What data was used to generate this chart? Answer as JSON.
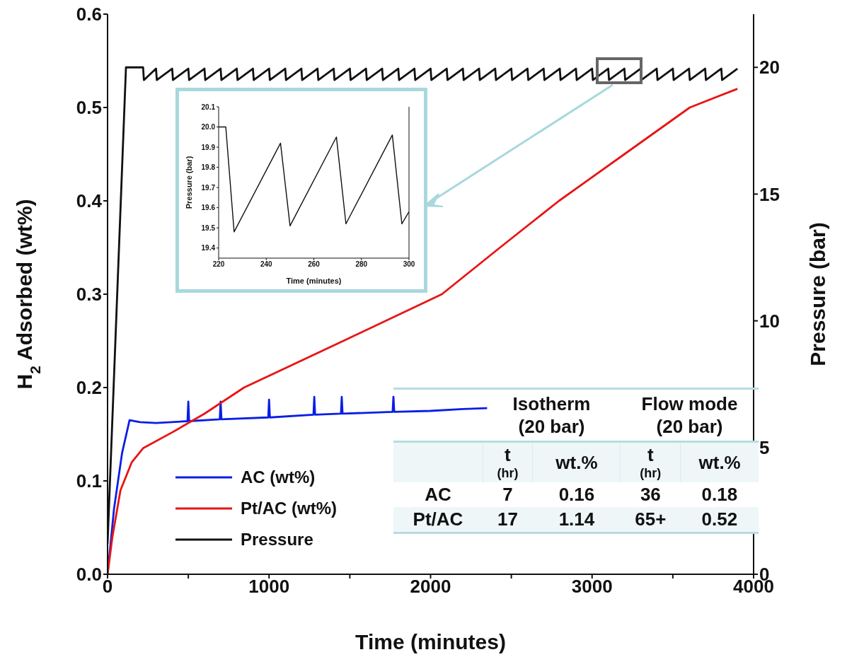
{
  "chart_data": [
    {
      "type": "line",
      "xlabel": "Time (minutes)",
      "ylabel": "H$_{2}$ Adsorbed (wt%)",
      "y2label": "Pressure (bar)",
      "xlim": [
        0,
        4000
      ],
      "xticks": [
        0,
        {
          "value": 500,
          "label": null
        },
        1000,
        {
          "value": 1500,
          "label": null
        },
        2000,
        {
          "value": 2500,
          "label": null
        },
        3000,
        {
          "value": 3500,
          "label": null
        },
        4000
      ],
      "ylim": [
        0,
        0.6
      ],
      "yticks": [
        {
          "value": 0,
          "label": "0.0"
        },
        0.1,
        0.2,
        0.3,
        0.4,
        0.5,
        0.6
      ],
      "y2lim": [
        0,
        22.1
      ],
      "y2ticks": [
        0,
        5,
        10,
        15,
        20
      ],
      "legend": "bottom left",
      "grid": false,
      "marker": "none",
      "line_style": "solid",
      "series": [
        {
          "name": "AC (wt%)",
          "color": "#0a1ee6",
          "x": [
            0,
            40,
            90,
            136,
            200,
            300,
            495,
            500,
            505,
            695,
            700,
            705,
            995,
            1000,
            1005,
            1275,
            1280,
            1285,
            1445,
            1450,
            1455,
            1765,
            1770,
            1775,
            2000,
            2200,
            2350
          ],
          "values": [
            0,
            0.07,
            0.13,
            0.165,
            0.163,
            0.162,
            0.164,
            0.185,
            0.164,
            0.166,
            0.185,
            0.166,
            0.168,
            0.187,
            0.168,
            0.171,
            0.19,
            0.171,
            0.172,
            0.19,
            0.172,
            0.174,
            0.19,
            0.174,
            0.175,
            0.177,
            0.178
          ]
        },
        {
          "name": "Pt/AC (wt%)",
          "color": "#e81414",
          "x": [
            0,
            30,
            80,
            150,
            220,
            400,
            600,
            845,
            1460,
            2070,
            2430,
            2795,
            3200,
            3605,
            3900
          ],
          "values": [
            0,
            0.04,
            0.09,
            0.12,
            0.135,
            0.152,
            0.172,
            0.2,
            0.25,
            0.3,
            0.35,
            0.4,
            0.45,
            0.5,
            0.52
          ]
        },
        {
          "name": "Pressure",
          "color": "#111111",
          "axis": "y2",
          "x": [
            0,
            114,
            220,
            225,
            300,
            305,
            400,
            405,
            500,
            505,
            600,
            605,
            700,
            705,
            800,
            805,
            900,
            905,
            1000,
            1005,
            1100,
            1105,
            1200,
            1205,
            1300,
            1305,
            1400,
            1405,
            1500,
            1505,
            1600,
            1605,
            1700,
            1705,
            1800,
            1805,
            1900,
            1905,
            2000,
            2005,
            2100,
            2105,
            2200,
            2205,
            2300,
            2305,
            2400,
            2405,
            2500,
            2505,
            2600,
            2605,
            2700,
            2705,
            2800,
            2805,
            2900,
            2905,
            3000,
            3005,
            3100,
            3105,
            3200,
            3205,
            3300,
            3305,
            3400,
            3405,
            3500,
            3505,
            3600,
            3605,
            3700,
            3705,
            3800,
            3805,
            3900
          ],
          "values": [
            1.2,
            20,
            20,
            19.5,
            19.95,
            19.5,
            19.95,
            19.5,
            19.95,
            19.5,
            19.95,
            19.5,
            19.95,
            19.5,
            19.95,
            19.5,
            19.95,
            19.5,
            19.95,
            19.5,
            19.95,
            19.5,
            19.95,
            19.5,
            19.95,
            19.5,
            19.95,
            19.5,
            19.95,
            19.5,
            19.95,
            19.5,
            19.95,
            19.5,
            19.95,
            19.5,
            19.95,
            19.5,
            19.95,
            19.5,
            19.95,
            19.5,
            19.95,
            19.5,
            19.95,
            19.5,
            19.95,
            19.5,
            19.95,
            19.5,
            19.95,
            19.5,
            19.95,
            19.5,
            19.95,
            19.5,
            19.95,
            19.5,
            19.95,
            19.5,
            19.95,
            19.5,
            19.95,
            19.5,
            19.95,
            19.5,
            19.95,
            19.5,
            19.95,
            19.5,
            19.95,
            19.5,
            19.95,
            19.5,
            19.95,
            19.5,
            19.95
          ]
        }
      ],
      "annotations": [
        "Isotherm (20 bar)",
        "Flow mode (20 bar)",
        "t (hr)",
        "wt.%",
        "t (hr)",
        "wt.%",
        "AC",
        "7",
        "0.16",
        "36",
        "0.18",
        "Pt/AC",
        "17",
        "1.14",
        "65+",
        "0.52"
      ]
    },
    {
      "type": "line",
      "xlabel": "Time (minutes)",
      "ylabel": "Pressure (bar)",
      "xlim": [
        220,
        300
      ],
      "xticks": [
        220,
        240,
        260,
        280,
        300
      ],
      "ylim": [
        19.35,
        20.1
      ],
      "yticks": [
        19.4,
        19.5,
        19.6,
        19.7,
        19.8,
        19.9,
        {
          "value": 20,
          "label": "20.0"
        },
        20.1
      ],
      "grid": false,
      "marker": "none",
      "line_style": "solid",
      "series": [
        {
          "color": "#111111",
          "x": [
            220,
            223,
            226.5,
            246,
            250,
            269.5,
            273.5,
            293,
            297,
            300
          ],
          "values": [
            20,
            20,
            19.48,
            19.92,
            19.51,
            19.95,
            19.52,
            19.96,
            19.52,
            19.58
          ]
        }
      ]
    }
  ]
}
